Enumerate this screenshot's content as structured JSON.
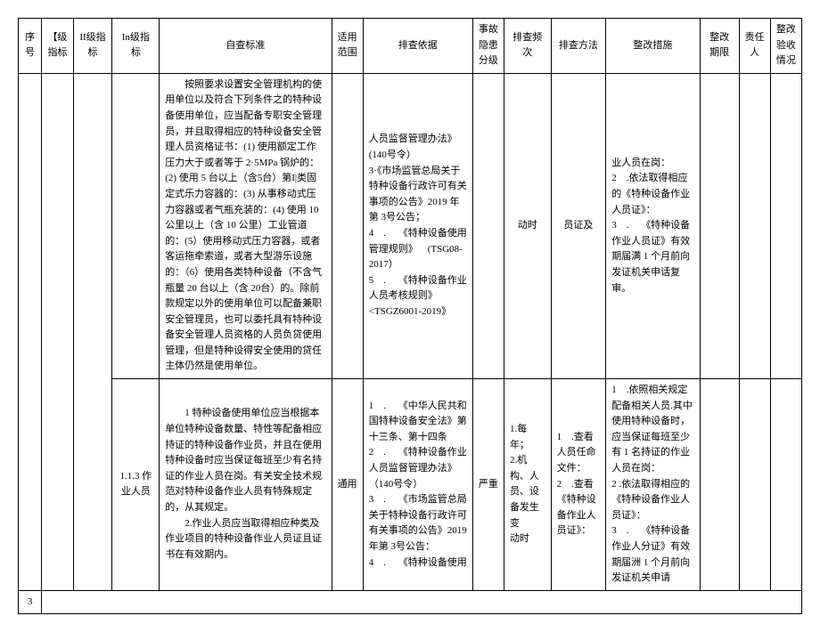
{
  "headers": {
    "seq": "序号",
    "level1": "【级指标",
    "level2": "II级指标",
    "level3": "In级指标",
    "standard": "自查标准",
    "scope": "适用范围",
    "basis": "排查依据",
    "grade": "事故隐患分级",
    "frequency": "排查频次",
    "method": "排查方法",
    "measure": "整改措施",
    "deadline": "整改期限",
    "person": "责任人",
    "status": "整改验收情况"
  },
  "row1": {
    "standard": "按照要求设置安全管理机构的使用单位以及符合下列条件之的特种设备使用单位，应当配备专职安全管理员，并且取得相应的特种设备安全管理人员资格证书：(1) 使用额定工作压力大于或者等于 2·5MPa 锅炉的：(2) 使用 5 台以上（含5台）第I|类固定式乐力容器的：(3) 从事移动式压力容器或者气瓶充装的：(4) 使用 10 公里以上（含 10 公里）工业管道的：(5）使用移动式压力容器，或者客运拖牵索道，或者大型游乐设施的：（6）使用各类特种设备（不含气瓶量 20 台以上（含 20台）的。除前款规定以外的使用单位可以配备兼职安全管理员，也可以委托具有特种设备安全管理人员资格的人员负贷使用管理，但是特种设得安全使用的贷任主体仍然是使用单位。",
    "basis": "人员监督管理办法》(140号令）\n3·《市场监管总局关于特种设备行政许可有关事项的公告》2019 年第 3号公告；\n4 .  《特种设备使用管理规则》 (TSG08-2017）\n5 .  《特种设备作业人员考核规则》<TSGZ6001-2019》",
    "freq_partial": "动时",
    "method_partial": "员证及",
    "measure": "业人员在岗：\n2 .依法取得相应的《特种设备作业人员证》：\n3 .  《特种设备作业人员证》有效期届满 1 个月前向发证机关申话复审。"
  },
  "row2": {
    "seq": "3",
    "level3": "1.1.3 作业人员",
    "standard": "1 特种设备使用单位应当根据本单位特种设备数量、特性等配备相应持证的特种设备作业员，并且在使用特种设备时应当保证每班至少有名持证的作业人员在岗。有关安全技术规范对特种设备作业人员有特殊规定的，从其规定。\n2.作业人员应当取得相应种类及作业项目的特种设备作业人员证且证书在有效期内。",
    "scope": "通用",
    "basis": "1 .  《中华人民共和国特种设备安全法》第十三条、第十四条\n2 .  《特种设备作业人员监督管理办法》（140号令）\n3 .  《市场监管总局关于特种设备行政许可有关事项的公告》2019年第 3号公告：\n4 .  《特种设备使用",
    "grade": "严重",
    "frequency": "1.每年；\n2.机构、人员、设备发生变\n动时",
    "method": "1 .查看人员任命文件：\n2 .查看《特种设备作业人员证》：",
    "measure": "1 .依照相关规定配备相关人员.其中使用特种设备时，应当保证每班至少有 1 名持证的作业人员在岗：\n2 .依法取得相应的《特种设备作业人员证》：\n3 .  《特种设备作业人分证》有效期届洲 1 个月前向发证机关申请"
  }
}
